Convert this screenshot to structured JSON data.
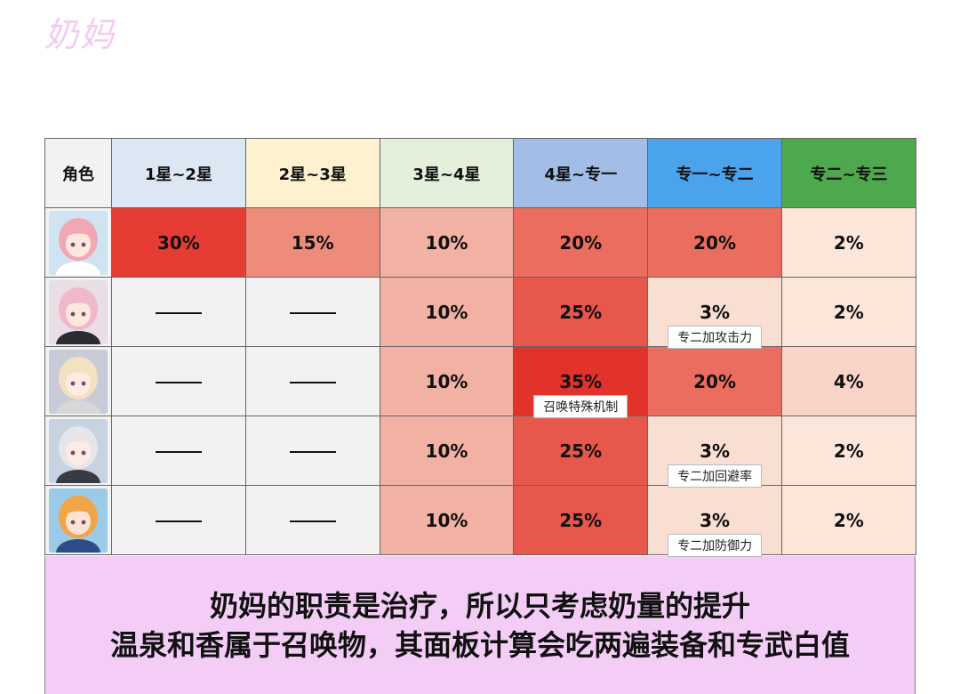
{
  "title": "奶妈",
  "table": {
    "headers": [
      "角色",
      "1星~2星",
      "2星~3星",
      "3星~4星",
      "4星~专一",
      "专一~专二",
      "专二~专三"
    ],
    "header_colors": [
      "#f2f2f2",
      "#dde7f3",
      "#fdf1cf",
      "#e4efdc",
      "#a2bde6",
      "#4ba4eb",
      "#4ea84d"
    ],
    "rows": [
      {
        "avatar": "character-avatar-1",
        "cells": [
          {
            "text": "30%",
            "color": "#e53c33"
          },
          {
            "text": "15%",
            "color": "#ee8c7c"
          },
          {
            "text": "10%",
            "color": "#f1b1a3"
          },
          {
            "text": "20%",
            "color": "#eb6d60"
          },
          {
            "text": "20%",
            "color": "#eb6d60"
          },
          {
            "text": "2%",
            "color": "#fbe6d9"
          }
        ]
      },
      {
        "avatar": "character-avatar-2",
        "cells": [
          {
            "text": "——",
            "color": "#f2f2f2"
          },
          {
            "text": "——",
            "color": "#f2f2f2"
          },
          {
            "text": "10%",
            "color": "#f1b1a3"
          },
          {
            "text": "25%",
            "color": "#e8574b"
          },
          {
            "text": "3%",
            "color": "#f9ded2",
            "note": "专二加攻击力"
          },
          {
            "text": "2%",
            "color": "#fbe6d9"
          }
        ]
      },
      {
        "avatar": "character-avatar-3",
        "cells": [
          {
            "text": "——",
            "color": "#f2f2f2"
          },
          {
            "text": "——",
            "color": "#f2f2f2"
          },
          {
            "text": "10%",
            "color": "#f1b1a3"
          },
          {
            "text": "35%",
            "color": "#e3312b",
            "note": "召唤特殊机制"
          },
          {
            "text": "20%",
            "color": "#eb6d60"
          },
          {
            "text": "4%",
            "color": "#f8d5c8"
          }
        ]
      },
      {
        "avatar": "character-avatar-4",
        "cells": [
          {
            "text": "——",
            "color": "#f2f2f2"
          },
          {
            "text": "——",
            "color": "#f2f2f2"
          },
          {
            "text": "10%",
            "color": "#f1b1a3"
          },
          {
            "text": "25%",
            "color": "#e8574b"
          },
          {
            "text": "3%",
            "color": "#f9ded2",
            "note": "专二加回避率"
          },
          {
            "text": "2%",
            "color": "#fbe6d9"
          }
        ]
      },
      {
        "avatar": "character-avatar-5",
        "cells": [
          {
            "text": "——",
            "color": "#f2f2f2"
          },
          {
            "text": "——",
            "color": "#f2f2f2"
          },
          {
            "text": "10%",
            "color": "#f1b1a3"
          },
          {
            "text": "25%",
            "color": "#e8574b"
          },
          {
            "text": "3%",
            "color": "#f9ded2",
            "note": "专二加防御力"
          },
          {
            "text": "2%",
            "color": "#fbe6d9"
          }
        ]
      }
    ]
  },
  "footer": {
    "line1": "奶妈的职责是治疗，所以只考虑奶量的提升",
    "line2": "温泉和香属于召唤物，其面板计算会吃两遍装备和专武白值"
  }
}
